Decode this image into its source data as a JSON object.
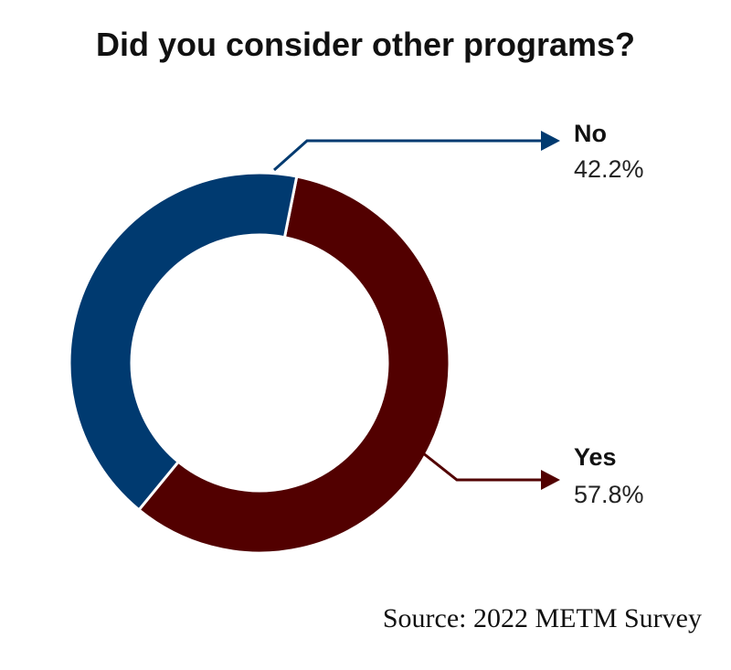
{
  "chart_data": {
    "type": "pie",
    "variant": "donut",
    "title": "Did you consider other programs?",
    "slices": [
      {
        "label": "No",
        "value": 42.2,
        "display": "42.2%",
        "color": "#003a70"
      },
      {
        "label": "Yes",
        "value": 57.8,
        "display": "57.8%",
        "color": "#520000"
      }
    ],
    "source": "Source: 2022 METM Survey"
  }
}
